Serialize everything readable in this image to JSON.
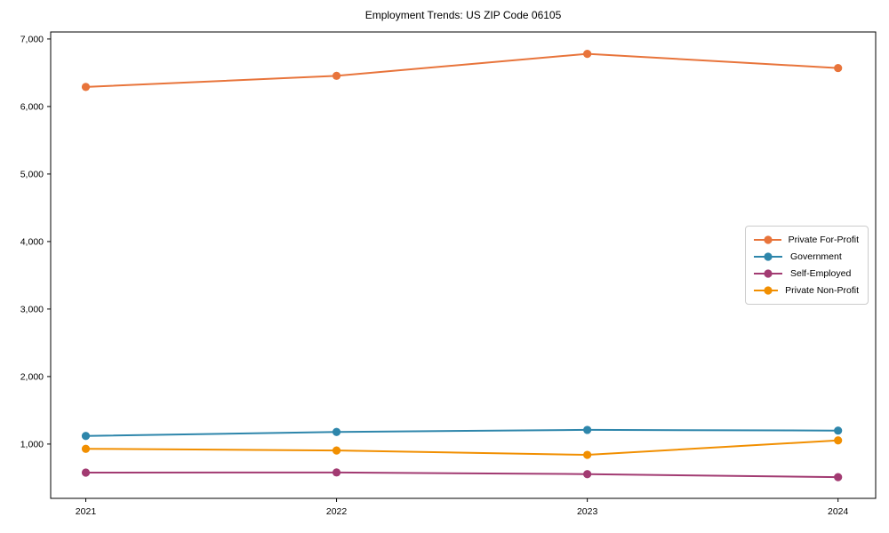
{
  "title": "Employment Trends: US ZIP Code 06105",
  "chart_data": {
    "type": "line",
    "title": "Employment Trends: US ZIP Code 06105",
    "x": [
      2021,
      2022,
      2023,
      2024
    ],
    "x_tick_labels": [
      "2021",
      "2022",
      "2023",
      "2024"
    ],
    "series": [
      {
        "name": "Private For-Profit",
        "color": "#E8743B",
        "values": [
          6290,
          6455,
          6780,
          6570
        ]
      },
      {
        "name": "Government",
        "color": "#2E86AB",
        "values": [
          1120,
          1180,
          1210,
          1200
        ]
      },
      {
        "name": "Self-Employed",
        "color": "#A23B72",
        "values": [
          578,
          580,
          555,
          510
        ]
      },
      {
        "name": "Private Non-Profit",
        "color": "#F18F01",
        "values": [
          930,
          905,
          840,
          1055
        ]
      }
    ],
    "xlim": [
      2020.86,
      2024.15
    ],
    "ylim": [
      196,
      7104
    ],
    "ytick_values": [
      1000,
      2000,
      3000,
      4000,
      5000,
      6000,
      7000
    ],
    "ytick_labels": [
      "1,000",
      "2,000",
      "3,000",
      "4,000",
      "5,000",
      "6,000",
      "7,000"
    ],
    "grid": false,
    "legend_position": "center right",
    "axis_color": "#000000",
    "background_color": "#ffffff"
  }
}
